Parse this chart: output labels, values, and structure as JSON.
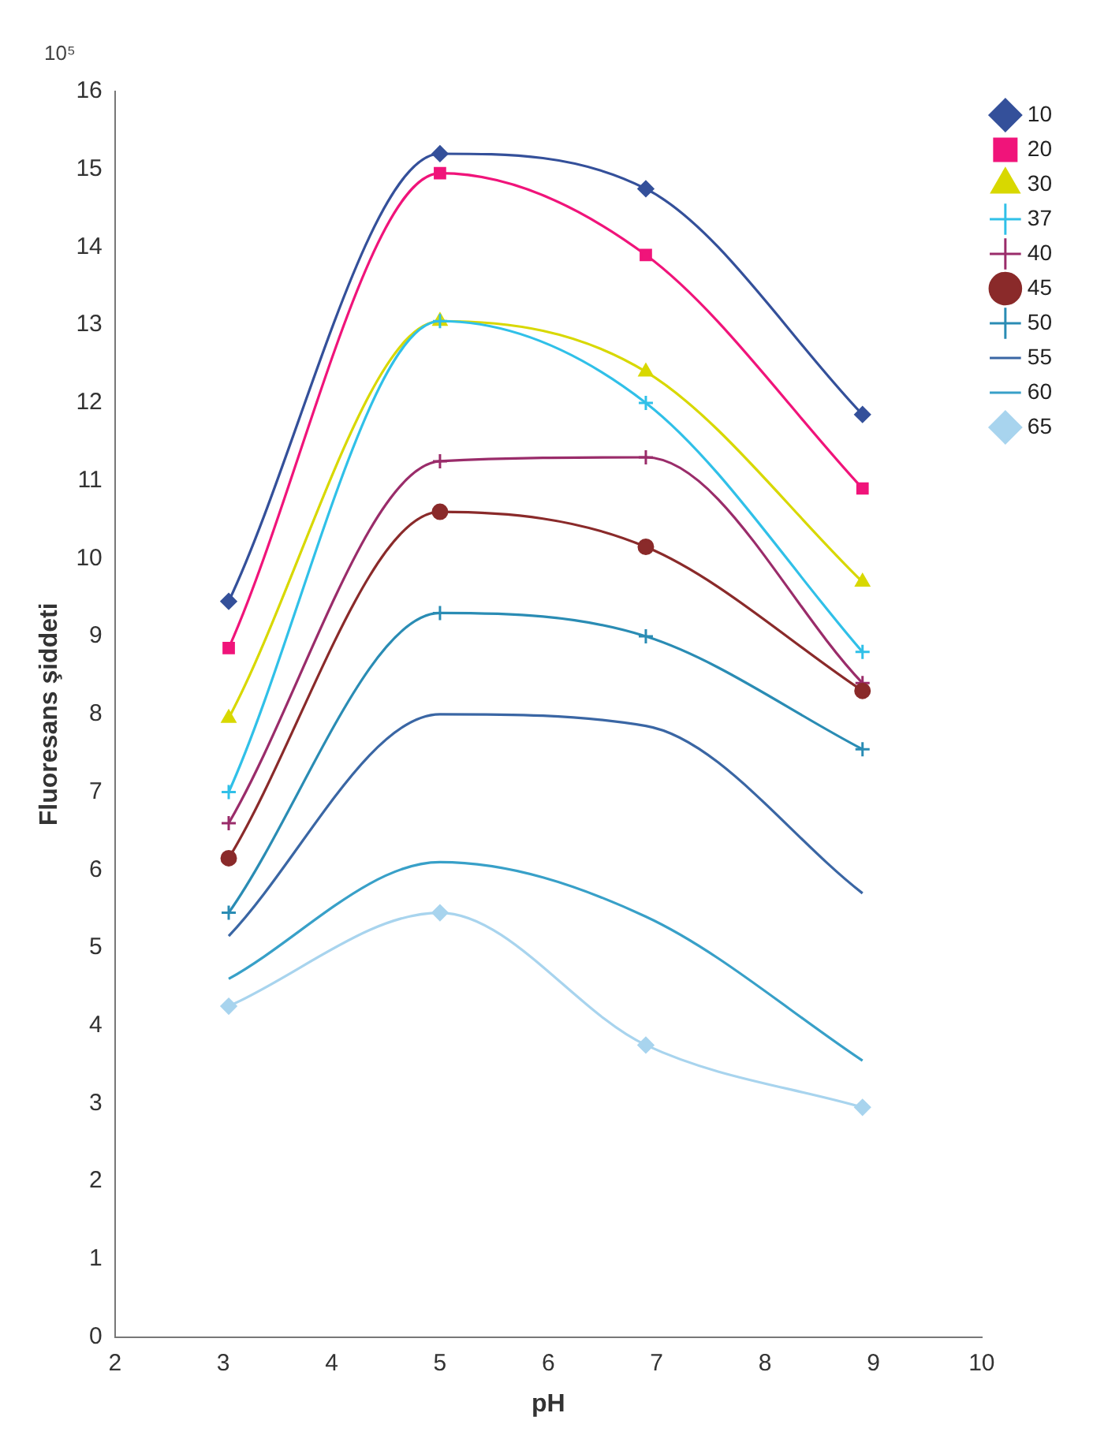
{
  "chart_data": {
    "type": "line",
    "xlabel": "pH",
    "ylabel": "Fluoresans şiddeti",
    "annotations": [
      "10⁵"
    ],
    "x": [
      3.05,
      5,
      6.9,
      8.9
    ],
    "xlim": [
      2,
      10
    ],
    "xticks": [
      2,
      3,
      4,
      5,
      6,
      7,
      8,
      9,
      10
    ],
    "ylim": [
      0,
      16
    ],
    "yticks": [
      0,
      1,
      2,
      3,
      4,
      5,
      6,
      7,
      8,
      9,
      10,
      11,
      12,
      13,
      14,
      15,
      16
    ],
    "grid": false,
    "legend": "top right",
    "line_style": "solid",
    "series": [
      {
        "name": "10",
        "color": "#34509a",
        "marker": "diamond",
        "values": [
          9.45,
          15.2,
          14.75,
          11.85
        ]
      },
      {
        "name": "20",
        "color": "#f0147a",
        "marker": "square",
        "values": [
          8.85,
          14.95,
          13.9,
          10.9
        ]
      },
      {
        "name": "30",
        "color": "#d8d800",
        "marker": "triangle",
        "values": [
          7.95,
          13.05,
          12.4,
          9.7
        ]
      },
      {
        "name": "37",
        "color": "#30c0e8",
        "marker": "cross",
        "values": [
          7.0,
          13.05,
          12.0,
          8.8
        ]
      },
      {
        "name": "40",
        "color": "#9a2c6a",
        "marker": "cross",
        "values": [
          6.6,
          11.25,
          11.3,
          8.4
        ]
      },
      {
        "name": "45",
        "color": "#8a2a2a",
        "marker": "circle",
        "values": [
          6.15,
          10.6,
          10.15,
          8.3
        ]
      },
      {
        "name": "50",
        "color": "#2a8cb4",
        "marker": "cross",
        "values": [
          5.45,
          9.3,
          9.0,
          7.55
        ]
      },
      {
        "name": "55",
        "color": "#3a66a4",
        "marker": "none",
        "values": [
          5.15,
          8.0,
          7.85,
          5.7
        ]
      },
      {
        "name": "60",
        "color": "#38a0c8",
        "marker": "none",
        "values": [
          4.6,
          6.1,
          5.4,
          3.55
        ]
      },
      {
        "name": "65",
        "color": "#a8d4ee",
        "marker": "diamond",
        "values": [
          4.25,
          5.45,
          3.75,
          2.95
        ]
      }
    ]
  }
}
